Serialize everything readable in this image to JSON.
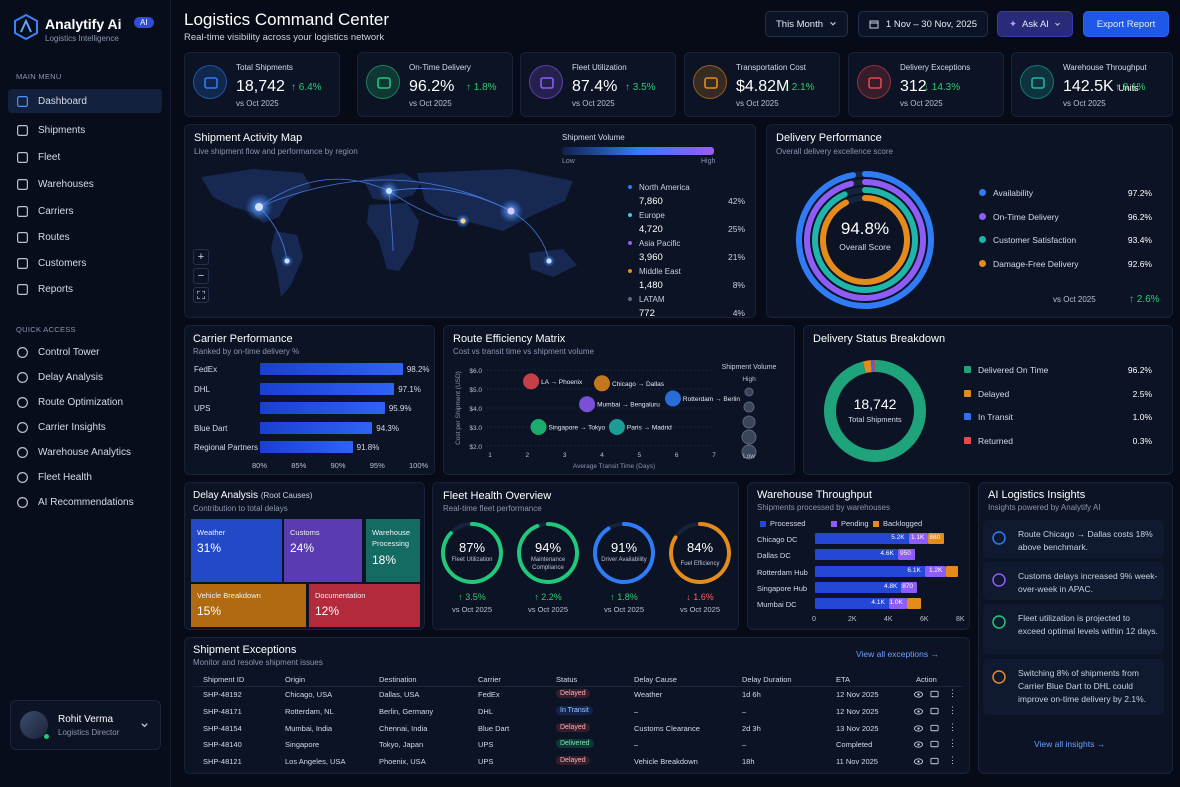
{
  "brand": {
    "name": "Analytify Ai",
    "tag": "AI",
    "subtitle": "Logistics Intelligence"
  },
  "sidebar": {
    "main_label": "MAIN MENU",
    "main": [
      "Dashboard",
      "Shipments",
      "Fleet",
      "Warehouses",
      "Carriers",
      "Routes",
      "Customers",
      "Reports"
    ],
    "quick_label": "QUICK ACCESS",
    "quick": [
      "Control Tower",
      "Delay Analysis",
      "Route Optimization",
      "Carrier Insights",
      "Warehouse Analytics",
      "Fleet Health",
      "AI Recommendations"
    ],
    "user": {
      "name": "Rohit Verma",
      "role": "Logistics Director"
    }
  },
  "header": {
    "title": "Logistics Command Center",
    "subtitle": "Real-time visibility across your logistics network",
    "period": "This Month",
    "date_range": "1 Nov – 30 Nov, 2025",
    "ask_ai": "Ask AI",
    "export": "Export Report"
  },
  "kpis": [
    {
      "label": "Total Shipments",
      "value": "18,742",
      "unit": "",
      "delta": "↑ 6.4%",
      "dir": "up",
      "cmp": "vs Oct 2025",
      "color": "#2f7cf6",
      "icon": "cube-icon"
    },
    {
      "label": "On-Time Delivery",
      "value": "96.2%",
      "unit": "",
      "delta": "↑ 1.8%",
      "dir": "up",
      "cmp": "vs Oct 2025",
      "color": "#21c77a",
      "icon": "clock-check-icon"
    },
    {
      "label": "Fleet Utilization",
      "value": "87.4%",
      "unit": "",
      "delta": "↑ 3.5%",
      "dir": "up",
      "cmp": "vs Oct 2025",
      "color": "#8e5cf7",
      "icon": "truck-icon"
    },
    {
      "label": "Transportation Cost",
      "value": "$4.82M",
      "unit": "",
      "delta": "↓ 2.1%",
      "dir": "up",
      "cmp": "vs Oct 2025",
      "color": "#e58b1c",
      "icon": "dollar-icon"
    },
    {
      "label": "Delivery Exceptions",
      "value": "312",
      "unit": "",
      "delta": "↓ 14.3%",
      "dir": "up",
      "cmp": "vs Oct 2025",
      "color": "#e5484d",
      "icon": "warning-icon"
    },
    {
      "label": "Warehouse Throughput",
      "value": "142.5K",
      "unit": "Units",
      "delta": "↑ 8.1%",
      "dir": "up",
      "cmp": "vs Oct 2025",
      "color": "#1fb5a8",
      "icon": "warehouse-icon"
    }
  ],
  "map": {
    "title": "Shipment Activity Map",
    "subtitle": "Live shipment flow and performance by region",
    "legend_title": "Shipment Volume",
    "low": "Low",
    "high": "High",
    "regions": [
      {
        "name": "North America",
        "value": "7,860",
        "pct": "42%",
        "color": "#2f7cf6"
      },
      {
        "name": "Europe",
        "value": "4,720",
        "pct": "25%",
        "color": "#3ec9e8"
      },
      {
        "name": "Asia Pacific",
        "value": "3,960",
        "pct": "21%",
        "color": "#9b5cf6"
      },
      {
        "name": "Middle East",
        "value": "1,480",
        "pct": "8%",
        "color": "#e58b1c"
      },
      {
        "name": "LATAM",
        "value": "772",
        "pct": "4%",
        "color": "#5a6a88"
      }
    ],
    "zoom_in": "+",
    "zoom_out": "−"
  },
  "delivery_perf": {
    "title": "Delivery Performance",
    "subtitle": "Overall delivery excellence score",
    "score": "94.8%",
    "score_label": "Overall Score",
    "items": [
      {
        "name": "Availability",
        "value": "97.2%",
        "pct": 97.2,
        "color": "#2f7cf6"
      },
      {
        "name": "On-Time Delivery",
        "value": "96.2%",
        "pct": 96.2,
        "color": "#8e5cf7"
      },
      {
        "name": "Customer Satisfaction",
        "value": "93.4%",
        "pct": 93.4,
        "color": "#1fb5a8"
      },
      {
        "name": "Damage-Free Delivery",
        "value": "92.6%",
        "pct": 92.6,
        "color": "#e58b1c"
      }
    ],
    "cmp": "vs Oct 2025",
    "delta": "↑ 2.6%"
  },
  "carrier": {
    "title": "Carrier Performance",
    "subtitle": "Ranked by on-time delivery %",
    "ticks": [
      "80%",
      "85%",
      "90%",
      "95%",
      "100%"
    ],
    "chart_data": {
      "type": "bar",
      "categories": [
        "FedEx",
        "DHL",
        "UPS",
        "Blue Dart",
        "Regional Partners"
      ],
      "values": [
        98.2,
        97.1,
        95.9,
        94.3,
        91.8
      ],
      "xlim": [
        80,
        100
      ]
    }
  },
  "route": {
    "title": "Route Efficiency Matrix",
    "subtitle": "Cost vs transit time vs shipment volume",
    "ylabel": "Cost per Shipment (USD)",
    "xlabel": "Average Transit Time (Days)",
    "volume_label": "Shipment Volume",
    "vol_high": "High",
    "vol_low": "Low",
    "chart_data": {
      "type": "scatter",
      "xlim": [
        1,
        7
      ],
      "ylim": [
        2,
        6
      ],
      "yticks": [
        "$6.0",
        "$5.0",
        "$4.0",
        "$3.0",
        "$2.0"
      ],
      "xticks": [
        "1",
        "2",
        "3",
        "4",
        "5",
        "6",
        "7"
      ],
      "points": [
        {
          "label": "LA → Phoenix",
          "x": 2.1,
          "y": 5.4,
          "color": "#e5484d"
        },
        {
          "label": "Chicago → Dallas",
          "x": 4.0,
          "y": 5.3,
          "color": "#e58b1c"
        },
        {
          "label": "Mumbai → Bengaluru",
          "x": 3.6,
          "y": 4.2,
          "color": "#8e5cf7"
        },
        {
          "label": "Rotterdam → Berlin",
          "x": 5.9,
          "y": 4.5,
          "color": "#2f7cf6"
        },
        {
          "label": "Singapore → Tokyo",
          "x": 2.3,
          "y": 3.0,
          "color": "#21c77a"
        },
        {
          "label": "Paris → Madrid",
          "x": 4.4,
          "y": 3.0,
          "color": "#1fb5a8"
        }
      ]
    }
  },
  "status": {
    "title": "Delivery Status Breakdown",
    "total": "18,742",
    "total_label": "Total Shipments",
    "chart_data": {
      "type": "pie",
      "items": [
        {
          "name": "Delivered On Time",
          "value": 96.2,
          "label": "96.2%",
          "color": "#1fa37a"
        },
        {
          "name": "Delayed",
          "value": 2.5,
          "label": "2.5%",
          "color": "#e58b1c"
        },
        {
          "name": "In Transit",
          "value": 1.0,
          "label": "1.0%",
          "color": "#2f6ff0"
        },
        {
          "name": "Returned",
          "value": 0.3,
          "label": "0.3%",
          "color": "#e5484d"
        }
      ]
    }
  },
  "delay": {
    "title": "Delay Analysis",
    "title_note": "(Root Causes)",
    "subtitle": "Contribution to total delays",
    "cells": [
      {
        "name": "Weather",
        "value": "31%",
        "color": "#2449c8"
      },
      {
        "name": "Customs",
        "value": "24%",
        "color": "#5a3bb0"
      },
      {
        "name": "Warehouse Processing",
        "value": "18%",
        "color": "#146b62"
      },
      {
        "name": "Vehicle Breakdown",
        "value": "15%",
        "color": "#b06a12"
      },
      {
        "name": "Documentation",
        "value": "12%",
        "color": "#b32a3c"
      }
    ]
  },
  "fleet": {
    "title": "Fleet Health Overview",
    "subtitle": "Real-time fleet performance",
    "gauges": [
      {
        "value": "87%",
        "pct": 87,
        "label": "Fleet Utilization",
        "delta": "↑ 3.5%",
        "dir": "up",
        "color": "#21c77a"
      },
      {
        "value": "94%",
        "pct": 94,
        "label": "Maintenance Compliance",
        "delta": "↑ 2.2%",
        "dir": "up",
        "color": "#21c77a"
      },
      {
        "value": "91%",
        "pct": 91,
        "label": "Driver Availability",
        "delta": "↑ 1.8%",
        "dir": "up",
        "color": "#2f7cf6"
      },
      {
        "value": "84%",
        "pct": 84,
        "label": "Fuel Efficiency",
        "delta": "↓ 1.6%",
        "dir": "down",
        "color": "#e58b1c"
      }
    ],
    "cmp": "vs Oct 2025"
  },
  "warehouse": {
    "title": "Warehouse Throughput",
    "subtitle": "Shipments processed by warehouses",
    "legend": [
      "Processed",
      "Pending",
      "Backlogged"
    ],
    "colors": [
      "#2547d6",
      "#8e5cf7",
      "#e58b1c"
    ],
    "ticks": [
      "0",
      "2K",
      "4K",
      "6K",
      "8K"
    ],
    "chart_data": {
      "type": "bar",
      "categories": [
        "Chicago DC",
        "Dallas DC",
        "Rotterdam Hub",
        "Singapore Hub",
        "Mumbai DC"
      ],
      "xlim": [
        0,
        8000
      ],
      "series": [
        {
          "name": "Processed",
          "values": [
            5200,
            4600,
            6100,
            4800,
            4100
          ],
          "labels": [
            "5.2K",
            "4.6K",
            "6.1K",
            "4.8K",
            "4.1K"
          ]
        },
        {
          "name": "Pending",
          "values": [
            1100,
            950,
            1200,
            870,
            1000
          ],
          "labels": [
            "1.1K",
            "950",
            "1.2K",
            "870",
            "1.0K"
          ]
        },
        {
          "name": "Backlogged",
          "values": [
            880,
            0,
            650,
            0,
            780
          ],
          "labels": [
            "880",
            "",
            "",
            "",
            ""
          ]
        }
      ]
    }
  },
  "ai": {
    "title": "AI Logistics Insights",
    "subtitle": "Insights powered by Analytify AI",
    "items": [
      {
        "text": "Route Chicago → Dallas costs 18% above benchmark.",
        "icon": "trend-icon",
        "color": "#2f7cf6"
      },
      {
        "text": "Customs delays increased 9% week-over-week in APAC.",
        "icon": "clock-icon",
        "color": "#8e5cf7"
      },
      {
        "text": "Fleet utilization is projected to exceed optimal levels within 12 days.",
        "icon": "truck-icon",
        "color": "#21c77a"
      },
      {
        "text": "Switching 8% of shipments from Carrier Blue Dart to DHL could improve on-time delivery by 2.1%.",
        "icon": "bulb-icon",
        "color": "#e58b1c"
      }
    ],
    "link": "View all insights →"
  },
  "exceptions": {
    "title": "Shipment Exceptions",
    "subtitle": "Monitor and resolve shipment issues",
    "link": "View all exceptions →",
    "cols": [
      "Shipment ID",
      "Origin",
      "Destination",
      "Carrier",
      "Status",
      "Delay Cause",
      "Delay Duration",
      "ETA",
      "Action"
    ],
    "rows": [
      {
        "id": "SHP-48192",
        "origin": "Chicago, USA",
        "dest": "Dallas, USA",
        "carrier": "FedEx",
        "status": "Delayed",
        "cause": "Weather",
        "duration": "1d 6h",
        "eta": "12 Nov 2025"
      },
      {
        "id": "SHP-48171",
        "origin": "Rotterdam, NL",
        "dest": "Berlin, Germany",
        "carrier": "DHL",
        "status": "In Transit",
        "cause": "–",
        "duration": "–",
        "eta": "12 Nov 2025"
      },
      {
        "id": "SHP-48154",
        "origin": "Mumbai, India",
        "dest": "Chennai, India",
        "carrier": "Blue Dart",
        "status": "Delayed",
        "cause": "Customs Clearance",
        "duration": "2d 3h",
        "eta": "13 Nov 2025"
      },
      {
        "id": "SHP-48140",
        "origin": "Singapore",
        "dest": "Tokyo, Japan",
        "carrier": "UPS",
        "status": "Delivered",
        "cause": "–",
        "duration": "–",
        "eta": "Completed"
      },
      {
        "id": "SHP-48121",
        "origin": "Los Angeles, USA",
        "dest": "Phoenix, USA",
        "carrier": "UPS",
        "status": "Delayed",
        "cause": "Vehicle Breakdown",
        "duration": "18h",
        "eta": "11 Nov 2025"
      }
    ],
    "status_colors": {
      "Delayed": "#e5484d",
      "In Transit": "#2f6ff0",
      "Delivered": "#21c77a"
    }
  }
}
